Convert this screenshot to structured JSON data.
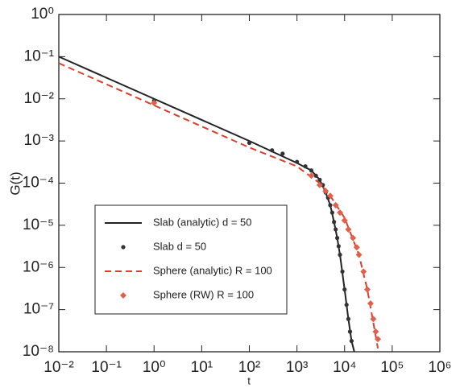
{
  "chart_data": {
    "type": "line",
    "x_label": "t",
    "y_label": "G(t)",
    "x_log": true,
    "y_log": true,
    "xlim": [
      0.01,
      1000000
    ],
    "ylim": [
      1e-08,
      1
    ],
    "xticks": [
      {
        "value": 0.01,
        "label": "10⁻²"
      },
      {
        "value": 0.1,
        "label": "10⁻¹"
      },
      {
        "value": 1,
        "label": "10⁰"
      },
      {
        "value": 10,
        "label": "10¹"
      },
      {
        "value": 100,
        "label": "10²"
      },
      {
        "value": 1000,
        "label": "10³"
      },
      {
        "value": 10000,
        "label": "10⁴"
      },
      {
        "value": 100000,
        "label": "10⁵"
      },
      {
        "value": 1000000,
        "label": "10⁶"
      }
    ],
    "yticks": [
      {
        "value": 1e-08,
        "label": "10⁻⁸"
      },
      {
        "value": 1e-07,
        "label": "10⁻⁷"
      },
      {
        "value": 1e-06,
        "label": "10⁻⁶"
      },
      {
        "value": 1e-05,
        "label": "10⁻⁵"
      },
      {
        "value": 0.0001,
        "label": "10⁻⁴"
      },
      {
        "value": 0.001,
        "label": "10⁻³"
      },
      {
        "value": 0.01,
        "label": "10⁻²"
      },
      {
        "value": 0.1,
        "label": "10⁻¹"
      },
      {
        "value": 1,
        "label": "10⁰"
      }
    ],
    "legend": "lower left",
    "series": [
      {
        "name": "Slab (analytic) d = 50",
        "color": "#222222",
        "line_style": "solid",
        "x": [
          0.01,
          1,
          100,
          1000,
          2000,
          3000,
          4000,
          5000,
          6000,
          7000,
          8000,
          10000,
          12000,
          14000,
          16000
        ],
        "values": [
          0.1,
          0.01,
          0.001,
          0.0003,
          0.0002,
          0.00012,
          6e-05,
          3e-05,
          1.2e-05,
          5e-06,
          2e-06,
          3e-07,
          6e-08,
          1.8e-08,
          1e-08
        ]
      },
      {
        "name": "Slab d = 50",
        "color": "#333333",
        "marker": "circle",
        "x": [
          1,
          100,
          300,
          500,
          1000,
          1500,
          2000,
          2500,
          3000,
          3500,
          4000,
          4500,
          5000,
          5500,
          6000,
          6500,
          7000,
          7500,
          8000,
          9000,
          10000,
          11000,
          12000,
          13000,
          14000
        ],
        "values": [
          0.009,
          0.0009,
          0.0006,
          0.0005,
          0.00032,
          0.00025,
          0.0002,
          0.00015,
          0.00012,
          9e-05,
          6e-05,
          4.5e-05,
          3e-05,
          2e-05,
          1.2e-05,
          8e-06,
          5e-06,
          3.2e-06,
          2e-06,
          8e-07,
          3e-07,
          1.3e-07,
          6e-08,
          3e-08,
          1.8e-08
        ]
      },
      {
        "name": "Sphere (analytic) R = 100",
        "color": "#d9402b",
        "line_style": "dashed",
        "x": [
          0.01,
          1,
          100,
          1000,
          3000,
          5000,
          10000,
          20000,
          30000,
          40000,
          50000
        ],
        "values": [
          0.07,
          0.007,
          0.0007,
          0.00025,
          0.0001,
          5e-05,
          1.5e-05,
          2e-06,
          3e-07,
          5e-08,
          1.2e-08
        ]
      },
      {
        "name": "Sphere (RW) R = 100",
        "color": "#e0604a",
        "marker": "diamond",
        "x": [
          1,
          2000,
          3000,
          4000,
          5000,
          6500,
          8000,
          10000,
          12000,
          15000,
          18000,
          20000,
          25000,
          30000,
          35000,
          40000,
          45000,
          50000
        ],
        "values": [
          0.008,
          0.00015,
          9e-05,
          6.5e-05,
          5e-05,
          3e-05,
          2e-05,
          1.3e-05,
          8e-06,
          5e-06,
          3e-06,
          2e-06,
          8e-07,
          3e-07,
          1.4e-07,
          6e-08,
          3e-08,
          2e-08
        ]
      }
    ]
  }
}
